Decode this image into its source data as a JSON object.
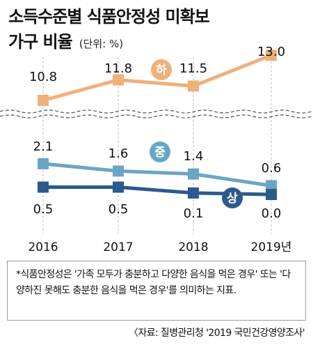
{
  "title_line1": "소득수준별 식품안정성 미확보",
  "title_line2": "가구 비율",
  "unit": "(단위: %)",
  "colors": {
    "high": "#f0b07a",
    "mid": "#6aa6c4",
    "low": "#2b5a8c",
    "axis": "#bbbbbb"
  },
  "chart_data": {
    "type": "line",
    "categories": [
      "2016",
      "2017",
      "2018",
      "2019년"
    ],
    "series": [
      {
        "name": "하",
        "values": [
          10.8,
          11.8,
          11.5,
          13.0
        ],
        "labels": [
          "10.8",
          "11.8",
          "11.5",
          "13.0"
        ]
      },
      {
        "name": "중",
        "values": [
          2.1,
          1.6,
          1.4,
          0.6
        ],
        "labels": [
          "2.1",
          "1.6",
          "1.4",
          "0.6"
        ]
      },
      {
        "name": "상",
        "values": [
          0.5,
          0.5,
          0.1,
          0.0
        ],
        "labels": [
          "0.5",
          "0.5",
          "0.1",
          "0.0"
        ]
      }
    ],
    "axis_break": true
  },
  "note": "*식품안정성은 '가족 모두가 충분하고 다양한 음식을 먹은 경우' 또는 '다양하진 못해도 충분한 음식을 먹은 경우'를 의미하는 지표.",
  "source": "〈자료: 질병관리청 '2019 국민건강영양조사'"
}
